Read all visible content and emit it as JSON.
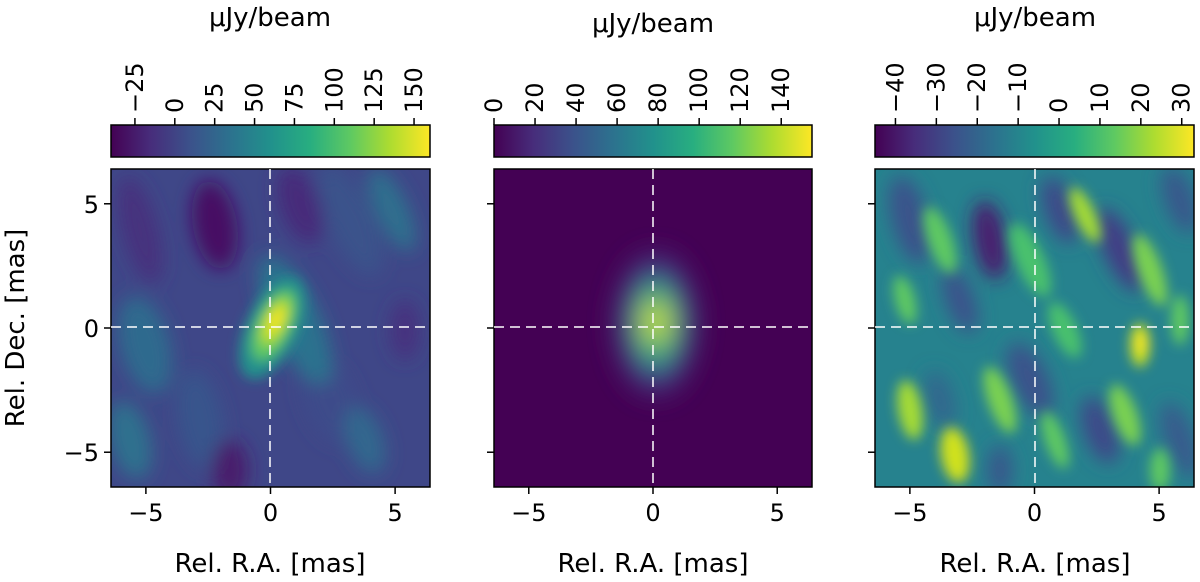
{
  "chart_data": [
    {
      "type": "heatmap",
      "title": "",
      "xlabel": "Rel. R.A. [mas]",
      "ylabel": "Rel. Dec. [mas]",
      "xlim": [
        -6.4,
        6.4
      ],
      "ylim": [
        -6.4,
        6.4
      ],
      "xticks": [
        -5,
        0,
        5
      ],
      "yticks": [
        5,
        0,
        -5
      ],
      "xtick_labels": [
        "−5",
        "0",
        "5"
      ],
      "ytick_labels": [
        "5",
        "0",
        "−5"
      ],
      "colorbar": {
        "label": "μJy/beam",
        "range": [
          -40,
          160
        ],
        "ticks": [
          -25,
          0,
          25,
          50,
          75,
          100,
          125,
          150
        ],
        "tick_labels": [
          "−25",
          "0",
          "25",
          "50",
          "75",
          "100",
          "125",
          "150"
        ]
      },
      "colormap": "viridis",
      "features": "compact source peaking ~155 at (0.3, 0.3) mas on mottled sidelobe background",
      "crosshair": [
        0,
        0
      ]
    },
    {
      "type": "heatmap",
      "title": "",
      "xlabel": "Rel. R.A. [mas]",
      "ylabel": "",
      "xlim": [
        -6.4,
        6.4
      ],
      "ylim": [
        -6.4,
        6.4
      ],
      "xticks": [
        -5,
        0,
        5
      ],
      "yticks": [
        5,
        0,
        -5
      ],
      "xtick_labels": [
        "−5",
        "0",
        "5"
      ],
      "ytick_labels": [],
      "colorbar": {
        "label": "μJy/beam",
        "range": [
          0,
          155
        ],
        "ticks": [
          0,
          20,
          40,
          60,
          80,
          100,
          120,
          140
        ],
        "tick_labels": [
          "0",
          "20",
          "40",
          "60",
          "80",
          "100",
          "120",
          "140"
        ]
      },
      "colormap": "viridis",
      "features": "smooth elliptical Gaussian model component centered near (0.2, 0.1) mas, peak ~155",
      "crosshair": [
        0,
        0
      ]
    },
    {
      "type": "heatmap",
      "title": "",
      "xlabel": "Rel. R.A. [mas]",
      "ylabel": "",
      "xlim": [
        -6.4,
        6.4
      ],
      "ylim": [
        -6.4,
        6.4
      ],
      "xticks": [
        -5,
        0,
        5
      ],
      "yticks": [
        5,
        0,
        -5
      ],
      "xtick_labels": [
        "−5",
        "0",
        "5"
      ],
      "ytick_labels": [],
      "colorbar": {
        "label": "μJy/beam",
        "range": [
          -45,
          33
        ],
        "ticks": [
          -40,
          -30,
          -20,
          -10,
          0,
          10,
          20,
          30
        ],
        "tick_labels": [
          "−40",
          "−30",
          "−20",
          "−10",
          "0",
          "10",
          "20",
          "30"
        ]
      },
      "colormap": "viridis",
      "features": "residual noise map with diagonal striations, brightest spot ~30 near (4.3, -0.5) mas",
      "crosshair": [
        0,
        0
      ]
    }
  ]
}
